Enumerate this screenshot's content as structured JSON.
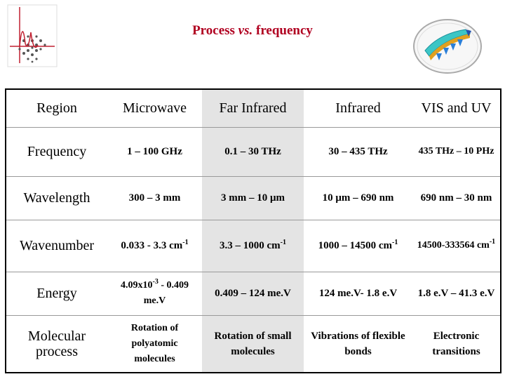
{
  "title": {
    "main": "Process",
    "vs": "vs.",
    "rest": "frequency"
  },
  "table": {
    "headers": [
      "Region",
      "Microwave",
      "Far Infrared",
      "Infrared",
      "VIS and UV"
    ],
    "rows": [
      {
        "label": "Frequency",
        "cells": [
          "1 – 100 GHz",
          "0.1 – 30 THz",
          "30 – 435 THz",
          "435 THz – 10 PHz"
        ]
      },
      {
        "label": "Wavelength",
        "cells": [
          "300 – 3 mm",
          "3 mm – 10 μm",
          "10 μm – 690 nm",
          "690 nm – 30 nm"
        ]
      },
      {
        "label": "Wavenumber",
        "cells": [
          "0.033 - 3.3 cm",
          "3.3 – 1000 cm",
          "1000 – 14500 cm",
          "14500-333564 cm"
        ],
        "sup": "-1"
      },
      {
        "label": "Energy",
        "cells": [
          "4.09x10",
          "0.409 – 124 me.V",
          "124 me.V- 1.8 e.V",
          "1.8 e.V – 41.3 e.V"
        ],
        "energy_exp": "-3",
        "energy_rest": " - 0.409 me.V"
      },
      {
        "label": "Molecular process",
        "cells": [
          "Rotation of polyatomic molecules",
          "Rotation of small molecules",
          "Vibrations of flexible bonds",
          "Electronic transitions"
        ]
      }
    ]
  }
}
